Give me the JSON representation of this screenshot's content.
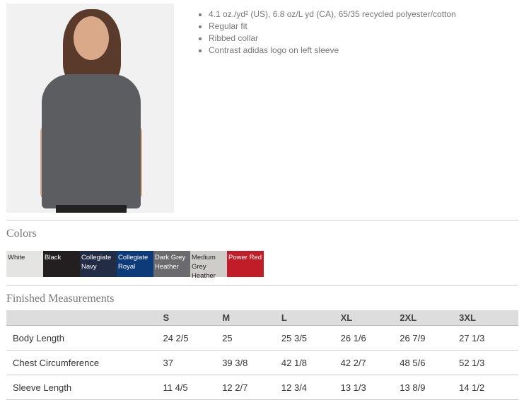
{
  "features": [
    "4.1 oz./yd² (US), 6.8 oz/L yd (CA), 65/35 recycled polyester/cotton",
    "Regular fit",
    "Ribbed collar",
    "Contrast adidas logo on left sleeve"
  ],
  "colors_title": "Colors",
  "colors": [
    {
      "name": "White",
      "hex": "#e4e4e2",
      "text": "#222"
    },
    {
      "name": "Black",
      "hex": "#231f20",
      "text": "#fff"
    },
    {
      "name": "Collegiate Navy",
      "hex": "#222c45",
      "text": "#fff"
    },
    {
      "name": "Collegiate Royal",
      "hex": "#0d3a78",
      "text": "#fff"
    },
    {
      "name": "Dark Grey Heather",
      "hex": "#6b6b6e",
      "text": "#fff"
    },
    {
      "name": "Medium Grey Heather",
      "hex": "#cfcdc9",
      "text": "#222"
    },
    {
      "name": "Power Red",
      "hex": "#c01d28",
      "text": "#fff"
    }
  ],
  "measurements_title": "Finished Measurements",
  "sizes": [
    "S",
    "M",
    "L",
    "XL",
    "2XL",
    "3XL"
  ],
  "rows": [
    {
      "label": "Body Length",
      "values": [
        "24 2/5",
        "25",
        "25 3/5",
        "26 1/6",
        "26 7/9",
        "27 1/3"
      ]
    },
    {
      "label": "Chest Circumference",
      "values": [
        "37",
        "39 3/8",
        "42 1/8",
        "42 2/7",
        "48 5/6",
        "52 1/3"
      ]
    },
    {
      "label": "Sleeve Length",
      "values": [
        "11 4/5",
        "12 2/7",
        "12 3/4",
        "13 1/3",
        "13 8/9",
        "14 1/2"
      ]
    }
  ]
}
